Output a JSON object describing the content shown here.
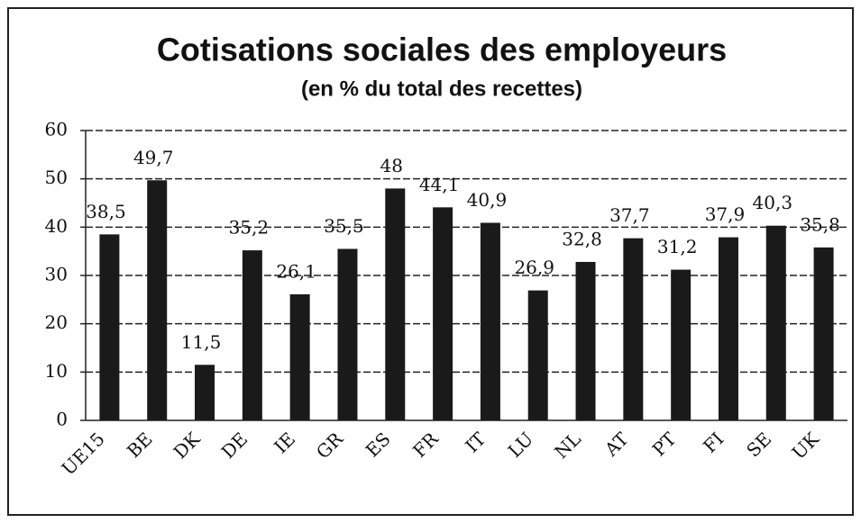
{
  "chart_data": {
    "type": "bar",
    "title": "Cotisations sociales des employeurs",
    "subtitle": "(en % du total des recettes)",
    "categories": [
      "UE15",
      "BE",
      "DK",
      "DE",
      "IE",
      "GR",
      "ES",
      "FR",
      "IT",
      "LU",
      "NL",
      "AT",
      "PT",
      "FI",
      "SE",
      "UK"
    ],
    "values": [
      38.5,
      49.7,
      11.5,
      35.2,
      26.1,
      35.5,
      48,
      44.1,
      40.9,
      26.9,
      32.8,
      37.7,
      31.2,
      37.9,
      40.3,
      35.8
    ],
    "value_labels": [
      "38,5",
      "49,7",
      "11,5",
      "35,2",
      "26,1",
      "35,5",
      "48",
      "44,1",
      "40,9",
      "26,9",
      "32,8",
      "37,7",
      "31,2",
      "37,9",
      "40,3",
      "35,8"
    ],
    "color": "#1a1a1a",
    "ylim": [
      0,
      60
    ],
    "yticks": [
      0,
      10,
      20,
      30,
      40,
      50,
      60
    ],
    "grid": true
  }
}
